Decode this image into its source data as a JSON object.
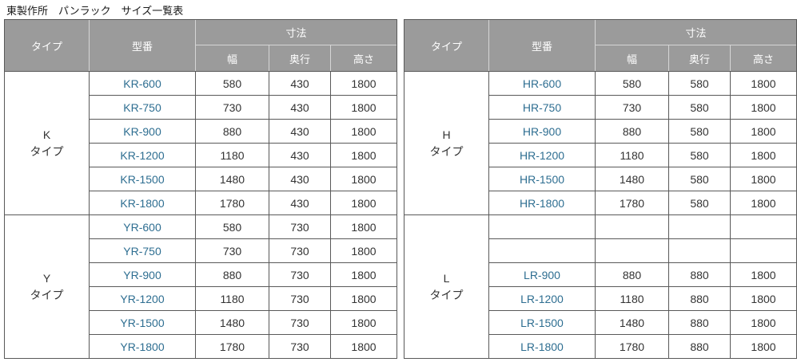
{
  "title": "東製作所　パンラック　サイズ一覧表",
  "colors": {
    "page-bg": "#ffffff",
    "header-bg": "#9b9b9b",
    "header-text": "#ffffff",
    "header-border": "#d6d6d6",
    "body-border": "#595959",
    "model-link": "#2e6e91",
    "text": "#333333"
  },
  "headers": {
    "type": "タイプ",
    "model": "型番",
    "dimensions": "寸法",
    "width": "幅",
    "depth": "奥行",
    "height": "高さ"
  },
  "left_table": {
    "sections": [
      {
        "type": "K\nタイプ",
        "rows": [
          {
            "model": "KR-600",
            "width": "580",
            "depth": "430",
            "height": "1800"
          },
          {
            "model": "KR-750",
            "width": "730",
            "depth": "430",
            "height": "1800"
          },
          {
            "model": "KR-900",
            "width": "880",
            "depth": "430",
            "height": "1800"
          },
          {
            "model": "KR-1200",
            "width": "1180",
            "depth": "430",
            "height": "1800"
          },
          {
            "model": "KR-1500",
            "width": "1480",
            "depth": "430",
            "height": "1800"
          },
          {
            "model": "KR-1800",
            "width": "1780",
            "depth": "430",
            "height": "1800"
          }
        ]
      },
      {
        "type": "Y\nタイプ",
        "rows": [
          {
            "model": "YR-600",
            "width": "580",
            "depth": "730",
            "height": "1800"
          },
          {
            "model": "YR-750",
            "width": "730",
            "depth": "730",
            "height": "1800"
          },
          {
            "model": "YR-900",
            "width": "880",
            "depth": "730",
            "height": "1800"
          },
          {
            "model": "YR-1200",
            "width": "1180",
            "depth": "730",
            "height": "1800"
          },
          {
            "model": "YR-1500",
            "width": "1480",
            "depth": "730",
            "height": "1800"
          },
          {
            "model": "YR-1800",
            "width": "1780",
            "depth": "730",
            "height": "1800"
          }
        ]
      }
    ]
  },
  "right_table": {
    "sections": [
      {
        "type": "H\nタイプ",
        "rows": [
          {
            "model": "HR-600",
            "width": "580",
            "depth": "580",
            "height": "1800"
          },
          {
            "model": "HR-750",
            "width": "730",
            "depth": "580",
            "height": "1800"
          },
          {
            "model": "HR-900",
            "width": "880",
            "depth": "580",
            "height": "1800"
          },
          {
            "model": "HR-1200",
            "width": "1180",
            "depth": "580",
            "height": "1800"
          },
          {
            "model": "HR-1500",
            "width": "1480",
            "depth": "580",
            "height": "1800"
          },
          {
            "model": "HR-1800",
            "width": "1780",
            "depth": "580",
            "height": "1800"
          }
        ]
      },
      {
        "type": "L\nタイプ",
        "rows": [
          {
            "model": "",
            "width": "",
            "depth": "",
            "height": ""
          },
          {
            "model": "",
            "width": "",
            "depth": "",
            "height": ""
          },
          {
            "model": "LR-900",
            "width": "880",
            "depth": "880",
            "height": "1800"
          },
          {
            "model": "LR-1200",
            "width": "1180",
            "depth": "880",
            "height": "1800"
          },
          {
            "model": "LR-1500",
            "width": "1480",
            "depth": "880",
            "height": "1800"
          },
          {
            "model": "LR-1800",
            "width": "1780",
            "depth": "880",
            "height": "1800"
          }
        ]
      }
    ]
  }
}
